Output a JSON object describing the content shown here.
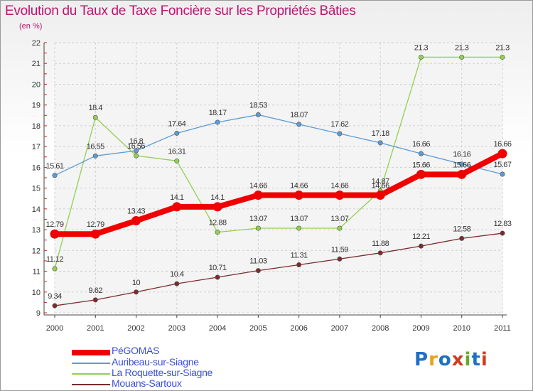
{
  "title": "Evolution du Taux de Taxe Foncière sur les Propriétés Bâties",
  "subtitle": "(en %)",
  "logo": {
    "text": "Proxiti",
    "colors": [
      "#1f6fc4",
      "#e8a21a",
      "#1f6fc4",
      "#d23c1e",
      "#6aa62c",
      "#1f6fc4",
      "#d23c1e"
    ]
  },
  "chart_data": {
    "type": "line",
    "categories": [
      "2000",
      "2001",
      "2002",
      "2003",
      "2004",
      "2005",
      "2006",
      "2007",
      "2008",
      "2009",
      "2010",
      "2011"
    ],
    "ylim": [
      9,
      22
    ],
    "yticks": [
      9,
      10,
      11,
      12,
      13,
      14,
      15,
      16,
      17,
      18,
      19,
      20,
      21,
      22
    ],
    "grid": true,
    "legend_position": "bottom-left",
    "series": [
      {
        "name": "PéGOMAS",
        "color": "#f00000",
        "width": 8,
        "markerRadius": 6.5,
        "values": [
          12.79,
          12.79,
          13.43,
          14.1,
          14.1,
          14.66,
          14.66,
          14.66,
          14.66,
          15.66,
          15.66,
          16.66
        ],
        "labels": [
          "12.79",
          "12.79",
          "13.43",
          "14.1",
          "14.1",
          "14.66",
          "14.66",
          "14.66",
          "14.66",
          "15.66",
          "15.66",
          "16.66"
        ]
      },
      {
        "name": "Auribeau-sur-Siagne",
        "color": "#5b9bd5",
        "width": 1.3,
        "markerRadius": 3.2,
        "values": [
          15.61,
          16.55,
          16.8,
          17.64,
          18.17,
          18.53,
          18.07,
          17.62,
          17.18,
          16.66,
          16.16,
          15.67
        ],
        "labels": [
          "15.61",
          "16.55",
          "16.8",
          "17.64",
          "18.17",
          "18.53",
          "18.07",
          "17.62",
          "17.18",
          "16.66",
          "16.16",
          "15.67"
        ]
      },
      {
        "name": "La Roquette-sur-Siagne",
        "color": "#92d050",
        "width": 1.3,
        "markerRadius": 3.2,
        "values": [
          11.12,
          18.4,
          16.56,
          16.31,
          12.88,
          13.07,
          13.07,
          13.07,
          14.87,
          21.3,
          21.3,
          21.3
        ],
        "labels": [
          "11.12",
          "18.4",
          "16.56",
          "16.31",
          "12.88",
          "13.07",
          "13.07",
          "13.07",
          "14.87",
          "21.3",
          "21.3",
          "21.3"
        ]
      },
      {
        "name": "Mouans-Sartoux",
        "color": "#7b2c2c",
        "width": 1.3,
        "markerRadius": 3.2,
        "values": [
          9.34,
          9.62,
          10,
          10.4,
          10.71,
          11.03,
          11.31,
          11.59,
          11.88,
          12.21,
          12.58,
          12.83
        ],
        "labels": [
          "9.34",
          "9.62",
          "10",
          "10.4",
          "10.71",
          "11.03",
          "11.31",
          "11.59",
          "11.88",
          "12.21",
          "12.58",
          "12.83"
        ]
      }
    ]
  }
}
